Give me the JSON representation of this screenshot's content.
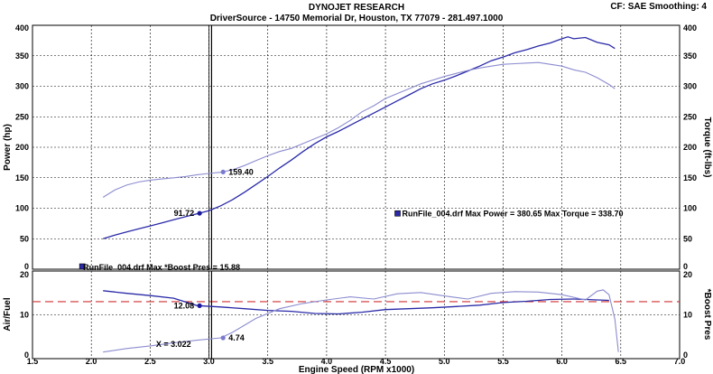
{
  "header": {
    "title": "DYNOJET RESEARCH",
    "subtitle": "DriverSource - 14750 Memorial Dr, Houston, TX 77079 - 281.497.1000",
    "cf_smoothing": "CF: SAE  Smoothing: 4"
  },
  "chart_data": [
    {
      "type": "line",
      "panel": "power-torque",
      "xlabel": "Engine Speed (RPM x1000)",
      "ylabel_left": "Power (hp)",
      "ylabel_right": "Torque (ft-lbs)",
      "xlim": [
        1.5,
        7.0
      ],
      "ylim": [
        0,
        400
      ],
      "x_ticks": [
        "1.5",
        "2.0",
        "2.5",
        "3.0",
        "3.5",
        "4.0",
        "4.5",
        "5.0",
        "5.5",
        "6.0",
        "6.5",
        "7.0"
      ],
      "y_ticks": [
        "0",
        "50",
        "100",
        "150",
        "200",
        "250",
        "300",
        "350",
        "400"
      ],
      "grid": true,
      "series": [
        {
          "name": "power",
          "color": "#2a2aa8",
          "points": [
            [
              2.1,
              50
            ],
            [
              2.2,
              56
            ],
            [
              2.3,
              61
            ],
            [
              2.4,
              66
            ],
            [
              2.5,
              71
            ],
            [
              2.6,
              76
            ],
            [
              2.7,
              81
            ],
            [
              2.8,
              86
            ],
            [
              2.9,
              91
            ],
            [
              3.0,
              96
            ],
            [
              3.1,
              104
            ],
            [
              3.2,
              114
            ],
            [
              3.3,
              126
            ],
            [
              3.4,
              139
            ],
            [
              3.5,
              152
            ],
            [
              3.6,
              166
            ],
            [
              3.7,
              179
            ],
            [
              3.8,
              193
            ],
            [
              3.9,
              206
            ],
            [
              4.0,
              217
            ],
            [
              4.1,
              226
            ],
            [
              4.2,
              236
            ],
            [
              4.3,
              246
            ],
            [
              4.4,
              256
            ],
            [
              4.5,
              266
            ],
            [
              4.6,
              276
            ],
            [
              4.7,
              286
            ],
            [
              4.8,
              296
            ],
            [
              4.9,
              304
            ],
            [
              5.0,
              310
            ],
            [
              5.1,
              317
            ],
            [
              5.2,
              325
            ],
            [
              5.3,
              333
            ],
            [
              5.4,
              342
            ],
            [
              5.5,
              348
            ],
            [
              5.6,
              355
            ],
            [
              5.7,
              360
            ],
            [
              5.8,
              366
            ],
            [
              5.9,
              371
            ],
            [
              6.0,
              378
            ],
            [
              6.05,
              381
            ],
            [
              6.1,
              378
            ],
            [
              6.2,
              380
            ],
            [
              6.3,
              372
            ],
            [
              6.4,
              368
            ],
            [
              6.45,
              362
            ]
          ]
        },
        {
          "name": "torque",
          "color": "#8c8cd0",
          "points": [
            [
              2.1,
              118
            ],
            [
              2.2,
              130
            ],
            [
              2.3,
              138
            ],
            [
              2.4,
              143
            ],
            [
              2.5,
              146
            ],
            [
              2.6,
              148
            ],
            [
              2.7,
              150
            ],
            [
              2.8,
              152
            ],
            [
              2.9,
              155
            ],
            [
              3.0,
              157
            ],
            [
              3.1,
              159
            ],
            [
              3.2,
              163
            ],
            [
              3.3,
              170
            ],
            [
              3.4,
              178
            ],
            [
              3.5,
              186
            ],
            [
              3.6,
              193
            ],
            [
              3.7,
              198
            ],
            [
              3.8,
              206
            ],
            [
              3.9,
              214
            ],
            [
              4.0,
              222
            ],
            [
              4.1,
              232
            ],
            [
              4.2,
              244
            ],
            [
              4.3,
              258
            ],
            [
              4.4,
              268
            ],
            [
              4.5,
              280
            ],
            [
              4.6,
              288
            ],
            [
              4.7,
              296
            ],
            [
              4.8,
              304
            ],
            [
              4.9,
              310
            ],
            [
              5.0,
              316
            ],
            [
              5.1,
              321
            ],
            [
              5.2,
              326
            ],
            [
              5.3,
              330
            ],
            [
              5.4,
              333
            ],
            [
              5.5,
              336
            ],
            [
              5.6,
              337
            ],
            [
              5.7,
              338
            ],
            [
              5.8,
              339
            ],
            [
              5.9,
              336
            ],
            [
              6.0,
              333
            ],
            [
              6.1,
              327
            ],
            [
              6.2,
              323
            ],
            [
              6.3,
              314
            ],
            [
              6.4,
              303
            ],
            [
              6.45,
              296
            ]
          ]
        }
      ],
      "markers": [
        {
          "series": "power",
          "x": 2.92,
          "y": 91.72,
          "label": "91.72",
          "label_side": "left"
        },
        {
          "series": "torque",
          "x": 3.12,
          "y": 159.4,
          "label": "159.40",
          "label_side": "right"
        }
      ],
      "cursor_x": 3.022,
      "annotations": [
        {
          "text": "RunFile_004.drf Max Power = 380.65    Max Torque = 338.70",
          "x": 4.58,
          "y": 90
        }
      ]
    },
    {
      "type": "line",
      "panel": "airfuel-boost",
      "ylabel_left": "Air/Fuel",
      "ylabel_right": "*Boost Pres",
      "xlim": [
        1.5,
        7.0
      ],
      "ylim": [
        0,
        20
      ],
      "y_ticks": [
        "0",
        "10",
        "20"
      ],
      "reference_line": 13,
      "grid": true,
      "series": [
        {
          "name": "air-fuel",
          "color": "#2a2aa8",
          "points": [
            [
              2.1,
              15.5
            ],
            [
              2.3,
              14.9
            ],
            [
              2.5,
              14.4
            ],
            [
              2.7,
              13.8
            ],
            [
              2.9,
              12.1
            ],
            [
              3.1,
              11.8
            ],
            [
              3.3,
              11.4
            ],
            [
              3.5,
              11.0
            ],
            [
              3.7,
              10.8
            ],
            [
              3.9,
              10.3
            ],
            [
              4.1,
              10.2
            ],
            [
              4.3,
              10.6
            ],
            [
              4.5,
              11.2
            ],
            [
              4.7,
              11.4
            ],
            [
              4.9,
              11.6
            ],
            [
              5.1,
              11.9
            ],
            [
              5.3,
              12.2
            ],
            [
              5.5,
              12.8
            ],
            [
              5.7,
              13.1
            ],
            [
              5.9,
              13.5
            ],
            [
              6.1,
              13.6
            ],
            [
              6.3,
              13.4
            ],
            [
              6.4,
              13.3
            ]
          ]
        },
        {
          "name": "boost",
          "color": "#8c8cd0",
          "points": [
            [
              2.1,
              1.5
            ],
            [
              2.3,
              2.3
            ],
            [
              2.5,
              2.9
            ],
            [
              2.7,
              3.6
            ],
            [
              2.9,
              4.2
            ],
            [
              3.1,
              4.74
            ],
            [
              3.2,
              6.0
            ],
            [
              3.4,
              9.2
            ],
            [
              3.6,
              11.4
            ],
            [
              3.8,
              12.6
            ],
            [
              4.0,
              13.4
            ],
            [
              4.2,
              14.1
            ],
            [
              4.4,
              13.6
            ],
            [
              4.6,
              14.8
            ],
            [
              4.8,
              15.1
            ],
            [
              5.0,
              14.3
            ],
            [
              5.2,
              13.6
            ],
            [
              5.4,
              14.9
            ],
            [
              5.6,
              15.3
            ],
            [
              5.8,
              15.2
            ],
            [
              6.0,
              14.6
            ],
            [
              6.2,
              13.4
            ],
            [
              6.3,
              15.4
            ],
            [
              6.35,
              15.7
            ],
            [
              6.4,
              14.6
            ],
            [
              6.45,
              9.0
            ],
            [
              6.48,
              1.5
            ]
          ]
        }
      ],
      "markers": [
        {
          "series": "air-fuel",
          "x": 2.92,
          "y": 12.08,
          "label": "12.08",
          "label_side": "left"
        },
        {
          "series": "boost",
          "x": 3.12,
          "y": 4.74,
          "label": "4.74",
          "label_side": "right"
        }
      ],
      "cursor_label": "X = 3.022",
      "annotations": [
        {
          "text": "RunFile_004.drf Max *Boost Pres = 15.88"
        }
      ]
    }
  ]
}
